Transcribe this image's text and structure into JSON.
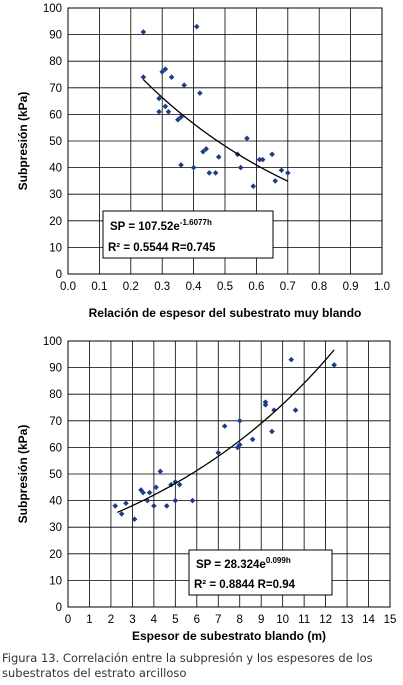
{
  "chart_data": [
    {
      "type": "scatter",
      "xlabel": "Relación de espesor del subestrato muy blando",
      "ylabel": "Subpresión (kPa)",
      "xlim": [
        0.0,
        1.0
      ],
      "ylim": [
        0,
        100
      ],
      "xticks": [
        "0.0",
        "0.1",
        "0.2",
        "0.3",
        "0.4",
        "0.5",
        "0.6",
        "0.7",
        "0.8",
        "0.9",
        "1.0"
      ],
      "yticks": [
        "0",
        "10",
        "20",
        "30",
        "40",
        "50",
        "60",
        "70",
        "80",
        "90",
        "100"
      ],
      "grid": true,
      "marker_color": "#1f3b8c",
      "points": [
        [
          0.24,
          91
        ],
        [
          0.24,
          74
        ],
        [
          0.29,
          66
        ],
        [
          0.29,
          61
        ],
        [
          0.3,
          76
        ],
        [
          0.31,
          77
        ],
        [
          0.31,
          63
        ],
        [
          0.32,
          61
        ],
        [
          0.33,
          74
        ],
        [
          0.35,
          58
        ],
        [
          0.36,
          59
        ],
        [
          0.36,
          41
        ],
        [
          0.37,
          71
        ],
        [
          0.4,
          40
        ],
        [
          0.41,
          93
        ],
        [
          0.42,
          68
        ],
        [
          0.43,
          46
        ],
        [
          0.44,
          47
        ],
        [
          0.45,
          38
        ],
        [
          0.47,
          38
        ],
        [
          0.48,
          44
        ],
        [
          0.54,
          45
        ],
        [
          0.55,
          40
        ],
        [
          0.57,
          51
        ],
        [
          0.59,
          33
        ],
        [
          0.61,
          43
        ],
        [
          0.62,
          43
        ],
        [
          0.65,
          45
        ],
        [
          0.66,
          35
        ],
        [
          0.68,
          39
        ],
        [
          0.7,
          38
        ]
      ],
      "fit": {
        "type": "exponential",
        "a": 107.52,
        "b": -1.6077,
        "x_range": [
          0.24,
          0.7
        ]
      },
      "equation": {
        "line1_main": "SP = 107.52e",
        "line1_exp": "-1.6077h",
        "line2": "R² = 0.5544 R=0.745"
      }
    },
    {
      "type": "scatter",
      "xlabel": "Espesor de subestrato blando (m)",
      "ylabel": "Subpresión (kPa)",
      "xlim": [
        0,
        15
      ],
      "ylim": [
        0,
        100
      ],
      "xticks": [
        "0",
        "1",
        "2",
        "3",
        "4",
        "5",
        "6",
        "7",
        "8",
        "9",
        "10",
        "11",
        "12",
        "13",
        "14",
        "15"
      ],
      "yticks": [
        "0",
        "10",
        "20",
        "30",
        "40",
        "50",
        "60",
        "70",
        "80",
        "90",
        "100"
      ],
      "grid": true,
      "marker_color": "#1f3b8c",
      "points": [
        [
          2.2,
          38
        ],
        [
          2.5,
          35
        ],
        [
          2.7,
          39
        ],
        [
          3.1,
          33
        ],
        [
          3.4,
          44
        ],
        [
          3.5,
          43
        ],
        [
          3.7,
          40
        ],
        [
          3.8,
          43
        ],
        [
          4.0,
          38
        ],
        [
          4.1,
          45
        ],
        [
          4.3,
          51
        ],
        [
          4.6,
          38
        ],
        [
          4.8,
          46
        ],
        [
          5.0,
          47
        ],
        [
          5.0,
          40
        ],
        [
          5.2,
          46
        ],
        [
          5.8,
          40
        ],
        [
          7.0,
          58
        ],
        [
          7.3,
          68
        ],
        [
          7.9,
          60
        ],
        [
          8.0,
          61
        ],
        [
          8.0,
          70
        ],
        [
          8.6,
          63
        ],
        [
          9.2,
          76
        ],
        [
          9.2,
          77
        ],
        [
          9.5,
          66
        ],
        [
          9.6,
          74
        ],
        [
          10.4,
          93
        ],
        [
          10.6,
          74
        ],
        [
          12.4,
          91
        ]
      ],
      "fit": {
        "type": "exponential",
        "a": 28.324,
        "b": 0.099,
        "x_range": [
          2.3,
          12.4
        ]
      },
      "equation": {
        "line1_main": "SP = 28.324e",
        "line1_exp": "0.099h",
        "line2": "R² = 0.8844  R=0.94"
      }
    }
  ],
  "caption": {
    "line1": "Figura 13. Correlación entre la subpresión y los espesores de los",
    "line2": "subestratos del estrato arcilloso"
  }
}
